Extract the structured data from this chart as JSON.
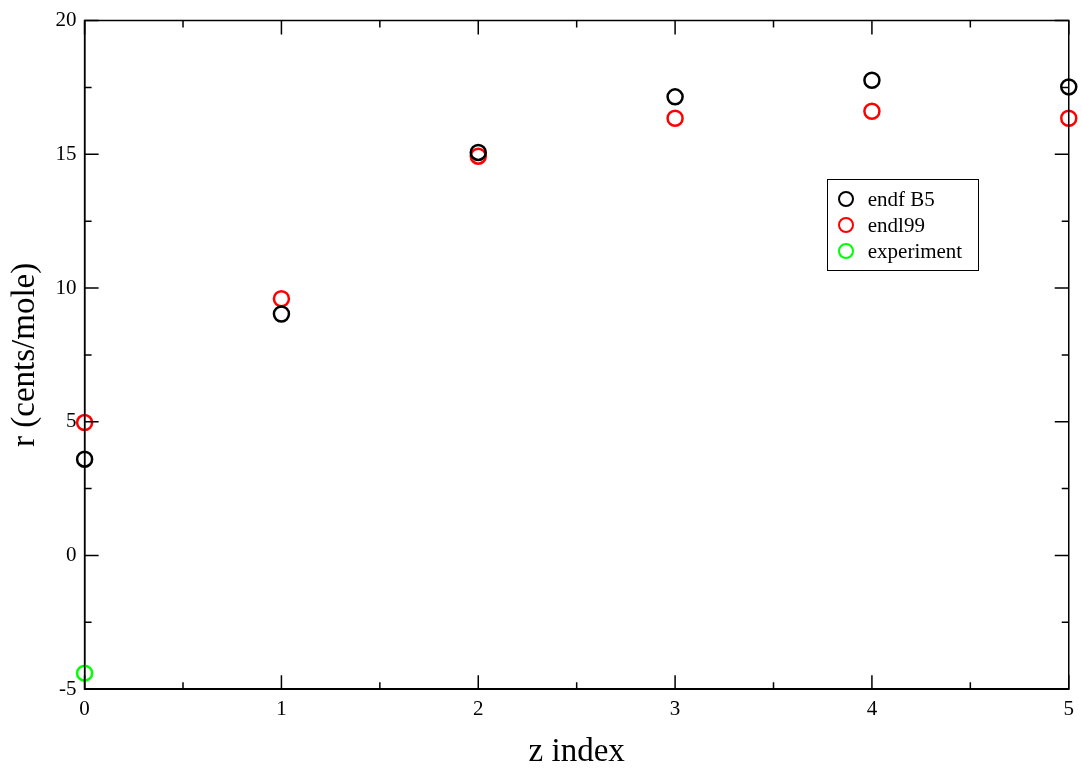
{
  "chart_data": {
    "type": "scatter",
    "xlabel": "z index",
    "ylabel": "r (cents/mole)",
    "xlim": [
      0,
      5
    ],
    "ylim": [
      -5,
      20
    ],
    "xticks": [
      0,
      {
        "value": 0.5,
        "label": null
      },
      1,
      {
        "value": 1.5,
        "label": null
      },
      2,
      {
        "value": 2.5,
        "label": null
      },
      3,
      {
        "value": 3.5,
        "label": null
      },
      4,
      {
        "value": 4.5,
        "label": null
      },
      5
    ],
    "yticks": [
      -5,
      {
        "value": -2.5,
        "label": null
      },
      0,
      {
        "value": 2.5,
        "label": null
      },
      5,
      {
        "value": 7.5,
        "label": null
      },
      10,
      {
        "value": 12.5,
        "label": null
      },
      15,
      {
        "value": 17.5,
        "label": null
      },
      20
    ],
    "x": [
      0,
      1,
      2,
      3,
      4,
      5
    ],
    "series": [
      {
        "name": "endf B5",
        "color": "#000000",
        "values": [
          3.6,
          9.03,
          15.07,
          17.15,
          17.77,
          17.52
        ]
      },
      {
        "name": "endl99",
        "color": "#ff0000",
        "values": [
          4.97,
          9.6,
          14.93,
          16.35,
          16.61,
          16.35
        ]
      },
      {
        "name": "experiment",
        "color": "#00ff00",
        "x": [
          0
        ],
        "values": [
          -4.4
        ]
      }
    ],
    "marker": "circle",
    "grid": false,
    "legend": "right"
  }
}
